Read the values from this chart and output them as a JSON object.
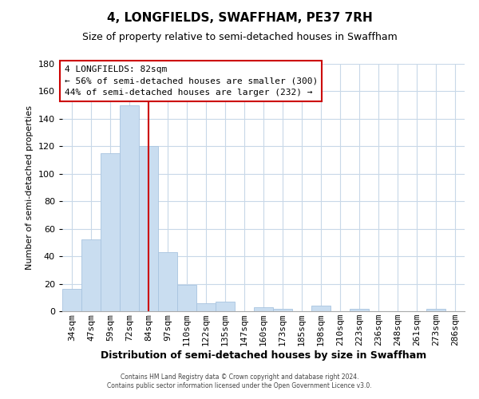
{
  "title": "4, LONGFIELDS, SWAFFHAM, PE37 7RH",
  "subtitle": "Size of property relative to semi-detached houses in Swaffham",
  "xlabel": "Distribution of semi-detached houses by size in Swaffham",
  "ylabel": "Number of semi-detached properties",
  "bar_labels": [
    "34sqm",
    "47sqm",
    "59sqm",
    "72sqm",
    "84sqm",
    "97sqm",
    "110sqm",
    "122sqm",
    "135sqm",
    "147sqm",
    "160sqm",
    "173sqm",
    "185sqm",
    "198sqm",
    "210sqm",
    "223sqm",
    "236sqm",
    "248sqm",
    "261sqm",
    "273sqm",
    "286sqm"
  ],
  "bar_values": [
    16,
    52,
    115,
    150,
    120,
    43,
    19,
    6,
    7,
    0,
    3,
    2,
    0,
    4,
    0,
    2,
    0,
    0,
    0,
    2,
    0
  ],
  "bar_color": "#c9ddf0",
  "bar_edge_color": "#a8c4e0",
  "vline_x_idx": 4,
  "vline_color": "#cc0000",
  "ylim": [
    0,
    180
  ],
  "yticks": [
    0,
    20,
    40,
    60,
    80,
    100,
    120,
    140,
    160,
    180
  ],
  "annotation_title": "4 LONGFIELDS: 82sqm",
  "annotation_line1": "← 56% of semi-detached houses are smaller (300)",
  "annotation_line2": "44% of semi-detached houses are larger (232) →",
  "annotation_box_color": "#ffffff",
  "annotation_box_edge": "#cc0000",
  "footer_line1": "Contains HM Land Registry data © Crown copyright and database right 2024.",
  "footer_line2": "Contains public sector information licensed under the Open Government Licence v3.0.",
  "background_color": "#ffffff",
  "grid_color": "#c8d8e8",
  "title_fontsize": 11,
  "subtitle_fontsize": 9,
  "xlabel_fontsize": 9,
  "ylabel_fontsize": 8,
  "tick_fontsize": 8
}
